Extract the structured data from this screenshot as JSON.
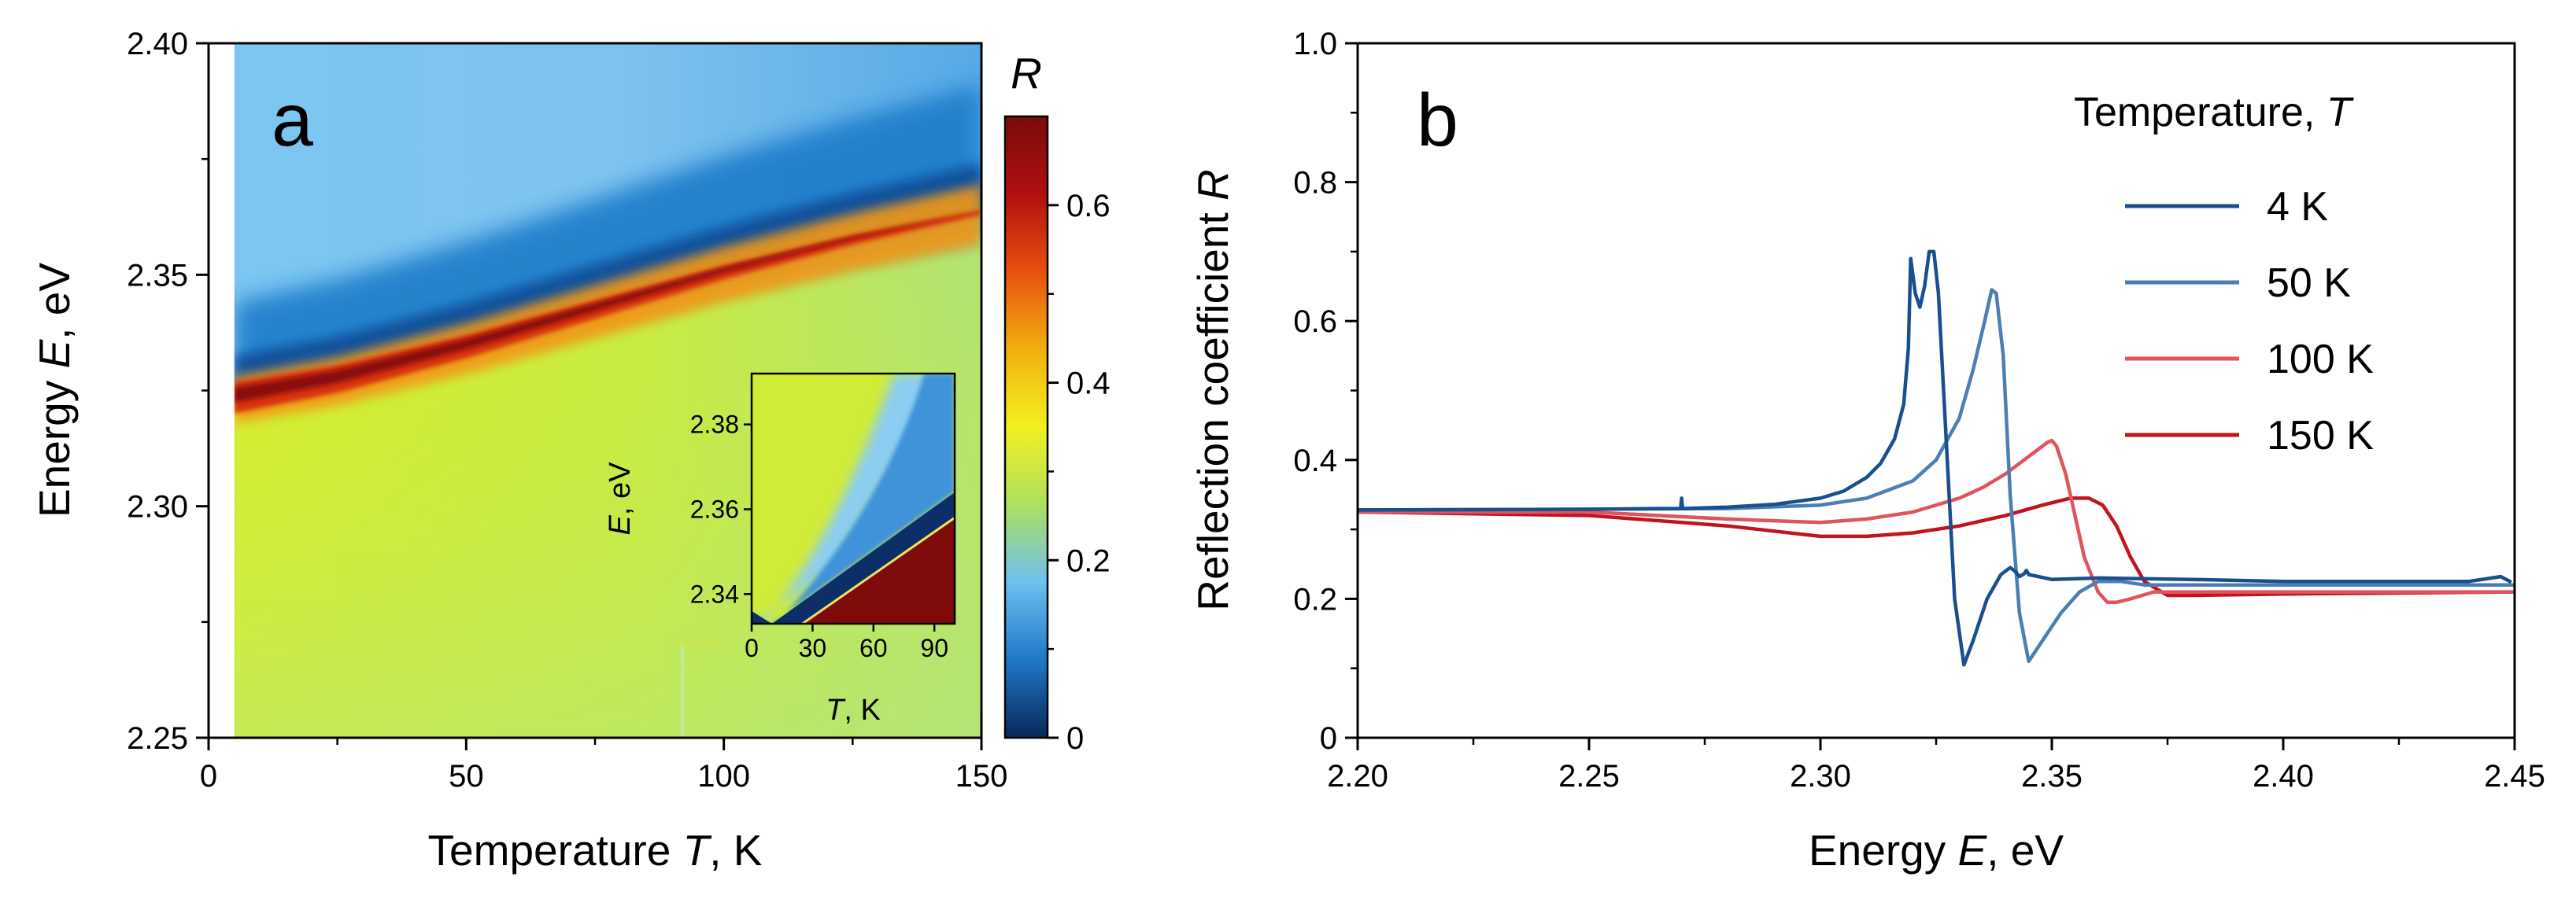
{
  "chart_data": [
    {
      "panel": "a",
      "type": "heatmap",
      "xlabel_prefix": "Temperature ",
      "xlabel_var": "T",
      "xlabel_suffix": ", K",
      "ylabel_prefix": "Energy ",
      "ylabel_var": "E",
      "ylabel_suffix": ", eV",
      "xlim": [
        0,
        150
      ],
      "ylim": [
        2.25,
        2.4
      ],
      "x_ticks": [
        0,
        50,
        100,
        150
      ],
      "x_tick_labels": [
        "0",
        "50",
        "100",
        "150"
      ],
      "y_ticks": [
        2.25,
        2.3,
        2.35,
        2.4
      ],
      "y_tick_labels": [
        "2.25",
        "2.30",
        "2.35",
        "2.40"
      ],
      "data_x_start": 5,
      "colorbar": {
        "label": "R",
        "range": [
          0,
          0.7
        ],
        "ticks": [
          0,
          0.2,
          0.4,
          0.6
        ],
        "tick_labels": [
          "0",
          "0.2",
          "0.4",
          "0.6"
        ],
        "colors": [
          "#08285a",
          "#1f78c8",
          "#6ec0ef",
          "#aee060",
          "#f2f020",
          "#f2b010",
          "#e85010",
          "#b01010",
          "#7a0a0a"
        ]
      },
      "resonance": {
        "T": [
          5,
          25,
          50,
          75,
          100,
          125,
          150
        ],
        "E": [
          2.324,
          2.328,
          2.335,
          2.343,
          2.351,
          2.358,
          2.364
        ]
      },
      "inset": {
        "xlabel_var": "T",
        "xlabel_suffix": ", K",
        "ylabel_var": "E",
        "ylabel_suffix": ", eV",
        "xlim": [
          0,
          100
        ],
        "ylim": [
          2.333,
          2.392
        ],
        "x_ticks": [
          0,
          30,
          60,
          90
        ],
        "x_tick_labels": [
          "0",
          "30",
          "60",
          "90"
        ],
        "y_ticks": [
          2.34,
          2.36,
          2.38
        ],
        "y_tick_labels": [
          "2.34",
          "2.36",
          "2.38"
        ],
        "dark_boundary": {
          "T": [
            10,
            100
          ],
          "E": [
            2.333,
            2.364
          ]
        },
        "red_boundary": {
          "T": [
            25,
            100
          ],
          "E": [
            2.333,
            2.358
          ]
        }
      }
    },
    {
      "panel": "b",
      "type": "line",
      "xlabel_prefix": "Energy ",
      "xlabel_var": "E",
      "xlabel_suffix": ", eV",
      "ylabel_prefix": "Reflection coefficient  ",
      "ylabel_var": "R",
      "xlim": [
        2.2,
        2.45
      ],
      "ylim": [
        0,
        1.0
      ],
      "x_ticks": [
        2.2,
        2.25,
        2.3,
        2.35,
        2.4,
        2.45
      ],
      "x_tick_labels": [
        "2.20",
        "2.25",
        "2.30",
        "2.35",
        "2.40",
        "2.45"
      ],
      "y_ticks": [
        0,
        0.2,
        0.4,
        0.6,
        0.8,
        1.0
      ],
      "y_tick_labels": [
        "0",
        "0.2",
        "0.4",
        "0.6",
        "0.8",
        "1.0"
      ],
      "legend_title_prefix": "Temperature, ",
      "legend_title_var": "T",
      "series": [
        {
          "name": "4 K",
          "color": "#1a4f8e",
          "x": [
            2.2,
            2.25,
            2.265,
            2.2698,
            2.27,
            2.2702,
            2.28,
            2.29,
            2.3,
            2.305,
            2.31,
            2.313,
            2.316,
            2.318,
            2.319,
            2.3195,
            2.3205,
            2.3215,
            2.3225,
            2.3235,
            2.3245,
            2.3255,
            2.327,
            2.329,
            2.331,
            2.333,
            2.336,
            2.339,
            2.341,
            2.342,
            2.343,
            2.344,
            2.3445,
            2.345,
            2.35,
            2.36,
            2.38,
            2.4,
            2.44,
            2.447,
            2.449
          ],
          "y": [
            0.328,
            0.329,
            0.33,
            0.33,
            0.345,
            0.33,
            0.332,
            0.336,
            0.345,
            0.355,
            0.375,
            0.395,
            0.43,
            0.48,
            0.56,
            0.69,
            0.64,
            0.62,
            0.65,
            0.7,
            0.7,
            0.64,
            0.45,
            0.2,
            0.105,
            0.14,
            0.2,
            0.235,
            0.245,
            0.24,
            0.232,
            0.236,
            0.241,
            0.235,
            0.228,
            0.23,
            0.228,
            0.225,
            0.225,
            0.232,
            0.225
          ]
        },
        {
          "name": "50 K",
          "color": "#4a7fb5",
          "x": [
            2.2,
            2.25,
            2.28,
            2.3,
            2.31,
            2.32,
            2.325,
            2.33,
            2.333,
            2.3355,
            2.337,
            2.338,
            2.3395,
            2.341,
            2.343,
            2.345,
            2.348,
            2.352,
            2.356,
            2.36,
            2.365,
            2.37,
            2.38,
            2.4,
            2.45
          ],
          "y": [
            0.328,
            0.329,
            0.33,
            0.335,
            0.345,
            0.37,
            0.4,
            0.46,
            0.53,
            0.6,
            0.645,
            0.64,
            0.55,
            0.35,
            0.18,
            0.11,
            0.14,
            0.18,
            0.21,
            0.225,
            0.225,
            0.22,
            0.22,
            0.22,
            0.22
          ]
        },
        {
          "name": "100 K",
          "color": "#e0545c",
          "x": [
            2.2,
            2.25,
            2.28,
            2.3,
            2.31,
            2.32,
            2.33,
            2.335,
            2.34,
            2.344,
            2.347,
            2.349,
            2.35,
            2.351,
            2.353,
            2.355,
            2.357,
            2.36,
            2.362,
            2.364,
            2.367,
            2.372,
            2.38,
            2.4,
            2.45
          ],
          "y": [
            0.325,
            0.325,
            0.315,
            0.31,
            0.315,
            0.325,
            0.345,
            0.36,
            0.38,
            0.4,
            0.415,
            0.425,
            0.428,
            0.42,
            0.38,
            0.32,
            0.26,
            0.21,
            0.195,
            0.195,
            0.2,
            0.21,
            0.21,
            0.21,
            0.21
          ]
        },
        {
          "name": "150 K",
          "color": "#c0141e",
          "x": [
            2.2,
            2.25,
            2.28,
            2.3,
            2.31,
            2.32,
            2.33,
            2.34,
            2.348,
            2.354,
            2.358,
            2.361,
            2.364,
            2.367,
            2.37,
            2.375,
            2.38,
            2.4,
            2.45
          ],
          "y": [
            0.325,
            0.32,
            0.305,
            0.29,
            0.29,
            0.295,
            0.305,
            0.32,
            0.335,
            0.345,
            0.345,
            0.335,
            0.305,
            0.26,
            0.225,
            0.205,
            0.205,
            0.207,
            0.21
          ]
        }
      ]
    }
  ],
  "panel_labels": {
    "a": "a",
    "b": "b"
  }
}
